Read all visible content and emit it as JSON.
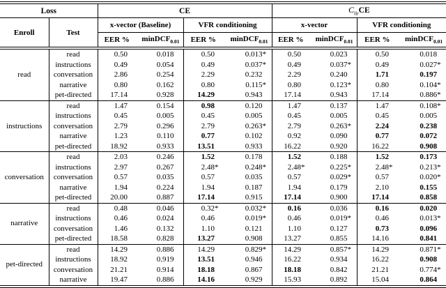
{
  "header": {
    "loss": "Loss",
    "enroll": "Enroll",
    "test": "Test",
    "ce": "CE",
    "cllr_c": "C",
    "cllr_sub": "llr",
    "cllr_suffix": "CE",
    "groups": [
      "x-vector (Baseline)",
      "VFR conditioning",
      "x-vector",
      "VFR conditioning"
    ],
    "metric_eer": "EER %",
    "metric_mindcf": "minDCF",
    "metric_mindcf_sub": "0.01"
  },
  "blocks": [
    {
      "enroll": "read",
      "rows": [
        {
          "test": "read",
          "vals": [
            "0.50",
            "0.018",
            "0.50",
            "0.013*",
            "0.50",
            "0.023",
            "0.50",
            "0.018"
          ],
          "bold": [
            0,
            0,
            0,
            0,
            0,
            0,
            0,
            0
          ]
        },
        {
          "test": "instructions",
          "vals": [
            "0.49",
            "0.054",
            "0.49",
            "0.037*",
            "0.49",
            "0.037*",
            "0.49",
            "0.027*"
          ],
          "bold": [
            0,
            0,
            0,
            0,
            0,
            0,
            0,
            0
          ]
        },
        {
          "test": "conversation",
          "vals": [
            "2.86",
            "0.254",
            "2.29",
            "0.232",
            "2.29",
            "0.240",
            "1.71",
            "0.197"
          ],
          "bold": [
            0,
            0,
            0,
            0,
            0,
            0,
            1,
            1
          ]
        },
        {
          "test": "narrative",
          "vals": [
            "0.80",
            "0.162",
            "0.80",
            "0.115*",
            "0.80",
            "0.123*",
            "0.80",
            "0.104*"
          ],
          "bold": [
            0,
            0,
            0,
            0,
            0,
            0,
            0,
            0
          ]
        },
        {
          "test": "pet-directed",
          "vals": [
            "17.14",
            "0.928",
            "14.29",
            "0.943",
            "17.14",
            "0.943",
            "17.14",
            "0.886*"
          ],
          "bold": [
            0,
            0,
            1,
            0,
            0,
            0,
            0,
            0
          ]
        }
      ]
    },
    {
      "enroll": "instructions",
      "rows": [
        {
          "test": "read",
          "vals": [
            "1.47",
            "0.154",
            "0.98",
            "0.120",
            "1.47",
            "0.137",
            "1.47",
            "0.108*"
          ],
          "bold": [
            0,
            0,
            1,
            0,
            0,
            0,
            0,
            0
          ]
        },
        {
          "test": "instructions",
          "vals": [
            "0.45",
            "0.005",
            "0.45",
            "0.005",
            "0.45",
            "0.005",
            "0.45",
            "0.005"
          ],
          "bold": [
            0,
            0,
            0,
            0,
            0,
            0,
            0,
            0
          ]
        },
        {
          "test": "conversation",
          "vals": [
            "2.79",
            "0.296",
            "2.79",
            "0.263*",
            "2.79",
            "0.263*",
            "2.24",
            "0.238"
          ],
          "bold": [
            0,
            0,
            0,
            0,
            0,
            0,
            1,
            1
          ]
        },
        {
          "test": "narrative",
          "vals": [
            "1.23",
            "0.110",
            "0.77",
            "0.102",
            "0.92",
            "0.090",
            "0.77",
            "0.072"
          ],
          "bold": [
            0,
            0,
            1,
            0,
            0,
            0,
            1,
            1
          ]
        },
        {
          "test": "pet-directed",
          "vals": [
            "18.92",
            "0.933",
            "13.51",
            "0.933",
            "16.22",
            "0.920",
            "16.22",
            "0.908"
          ],
          "bold": [
            0,
            0,
            1,
            0,
            0,
            0,
            0,
            1
          ]
        }
      ]
    },
    {
      "enroll": "conversation",
      "rows": [
        {
          "test": "read",
          "vals": [
            "2.03",
            "0.246",
            "1.52",
            "0.178",
            "1.52",
            "0.188",
            "1.52",
            "0.173"
          ],
          "bold": [
            0,
            0,
            1,
            0,
            1,
            0,
            1,
            1
          ]
        },
        {
          "test": "instructions",
          "vals": [
            "2.97",
            "0.267",
            "2.48*",
            "0.248*",
            "2.48*",
            "0.225*",
            "2.48*",
            "0.213*"
          ],
          "bold": [
            0,
            0,
            0,
            0,
            0,
            0,
            0,
            0
          ]
        },
        {
          "test": "conversation",
          "vals": [
            "0.57",
            "0.035",
            "0.57",
            "0.035",
            "0.57",
            "0.029*",
            "0.57",
            "0.020*"
          ],
          "bold": [
            0,
            0,
            0,
            0,
            0,
            0,
            0,
            0
          ]
        },
        {
          "test": "narrative",
          "vals": [
            "1.94",
            "0.224",
            "1.94",
            "0.187",
            "1.94",
            "0.179",
            "2.10",
            "0.155"
          ],
          "bold": [
            0,
            0,
            0,
            0,
            0,
            0,
            0,
            1
          ]
        },
        {
          "test": "pet-directed",
          "vals": [
            "20.00",
            "0.887",
            "17.14",
            "0.915",
            "17.14",
            "0.900",
            "17.14",
            "0.858"
          ],
          "bold": [
            0,
            0,
            1,
            0,
            1,
            0,
            1,
            1
          ]
        }
      ]
    },
    {
      "enroll": "narrative",
      "rows": [
        {
          "test": "read",
          "vals": [
            "0.48",
            "0.046",
            "0.32*",
            "0.032*",
            "0.16",
            "0.036",
            "0.16",
            "0.020"
          ],
          "bold": [
            0,
            0,
            0,
            0,
            1,
            0,
            1,
            1
          ]
        },
        {
          "test": "instructions",
          "vals": [
            "0.46",
            "0.024",
            "0.46",
            "0.019*",
            "0.46",
            "0.019*",
            "0.46",
            "0.013*"
          ],
          "bold": [
            0,
            0,
            0,
            0,
            0,
            0,
            0,
            0
          ]
        },
        {
          "test": "conversation",
          "vals": [
            "1.46",
            "0.132",
            "1.10",
            "0.121",
            "1.10",
            "0.127",
            "0.73",
            "0.096"
          ],
          "bold": [
            0,
            0,
            0,
            0,
            0,
            0,
            1,
            1
          ]
        },
        {
          "test": "pet-directed",
          "vals": [
            "18.58",
            "0.828",
            "13.27",
            "0.908",
            "13.27",
            "0.855",
            "14.16",
            "0.841"
          ],
          "bold": [
            0,
            0,
            1,
            0,
            0,
            0,
            0,
            1
          ]
        }
      ]
    },
    {
      "enroll": "pet-directed",
      "rows": [
        {
          "test": "read",
          "vals": [
            "14.29",
            "0.886",
            "14.29",
            "0.829*",
            "14.29",
            "0.857*",
            "14.29",
            "0.871*"
          ],
          "bold": [
            0,
            0,
            0,
            0,
            0,
            0,
            0,
            0
          ]
        },
        {
          "test": "instructions",
          "vals": [
            "18.92",
            "0.919",
            "13.51",
            "0.946",
            "16.22",
            "0.934",
            "16.22",
            "0.908"
          ],
          "bold": [
            0,
            0,
            1,
            0,
            0,
            0,
            0,
            1
          ]
        },
        {
          "test": "conversation",
          "vals": [
            "21.21",
            "0.914",
            "18.18",
            "0.867",
            "18.18",
            "0.842",
            "21.21",
            "0.774*"
          ],
          "bold": [
            0,
            0,
            1,
            0,
            1,
            0,
            0,
            0
          ]
        },
        {
          "test": "narrative",
          "vals": [
            "19.47",
            "0.886",
            "14.16",
            "0.929",
            "15.93",
            "0.892",
            "15.04",
            "0.864"
          ],
          "bold": [
            0,
            0,
            1,
            0,
            0,
            0,
            0,
            1
          ]
        }
      ]
    }
  ]
}
